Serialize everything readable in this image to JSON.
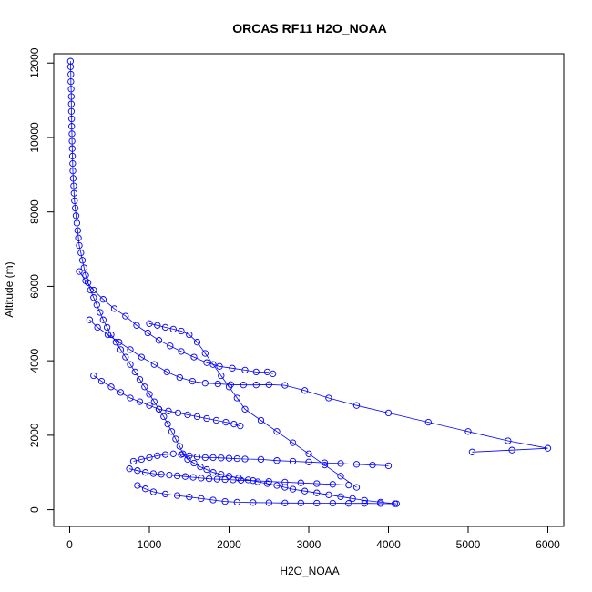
{
  "chart_data": {
    "type": "scatter",
    "title": "ORCAS RF11 H2O_NOAA",
    "xlabel": "H2O_NOAA",
    "ylabel": "Altitude (m)",
    "xlim": [
      -200,
      6200
    ],
    "ylim": [
      -450,
      12250
    ],
    "xticks": [
      0,
      1000,
      2000,
      3000,
      4000,
      5000,
      6000
    ],
    "yticks": [
      0,
      2000,
      4000,
      6000,
      8000,
      10000,
      12000
    ],
    "grid": false,
    "legend": "none",
    "series_color": "#0000ff",
    "marker": "open-circle",
    "connected": true,
    "series": [
      {
        "x": [
          10,
          12,
          15,
          15,
          18,
          20,
          20,
          22,
          25,
          25,
          28,
          30,
          32,
          35,
          38,
          40,
          45,
          50,
          55,
          60,
          70,
          80,
          90,
          100,
          110,
          120,
          140,
          160,
          180,
          200,
          230,
          260,
          300,
          340,
          380,
          420,
          470,
          520,
          580,
          640,
          700,
          760,
          820,
          880,
          940,
          1000,
          1060,
          1120,
          1180,
          1230,
          1280,
          1330,
          1380,
          1420,
          1480,
          1560,
          1640,
          1720,
          1800,
          1900,
          2000,
          2120,
          2240,
          2360,
          2480,
          2600,
          2700,
          2800,
          2950,
          3100,
          3250,
          3400,
          3550,
          3700,
          3900,
          4100,
          4080,
          3900,
          3700,
          3500,
          3300,
          3100,
          2900,
          2700,
          2500,
          2300,
          2100,
          1950,
          1800,
          1650,
          1500,
          1350,
          1200,
          1050,
          950,
          850
        ],
        "y": [
          12050,
          11900,
          11700,
          11500,
          11300,
          11100,
          10900,
          10700,
          10500,
          10300,
          10100,
          9900,
          9700,
          9500,
          9300,
          9100,
          8900,
          8700,
          8500,
          8300,
          8100,
          7900,
          7700,
          7500,
          7300,
          7100,
          6900,
          6700,
          6500,
          6300,
          6100,
          5900,
          5700,
          5500,
          5300,
          5100,
          4900,
          4700,
          4500,
          4300,
          4100,
          3900,
          3700,
          3500,
          3300,
          3100,
          2900,
          2700,
          2500,
          2300,
          2100,
          1900,
          1700,
          1500,
          1350,
          1250,
          1150,
          1080,
          1000,
          950,
          900,
          850,
          800,
          750,
          700,
          650,
          600,
          550,
          500,
          450,
          400,
          350,
          300,
          250,
          200,
          160,
          160,
          165,
          170,
          170,
          175,
          175,
          180,
          180,
          185,
          190,
          200,
          220,
          260,
          300,
          340,
          380,
          420,
          480,
          560,
          650
        ]
      },
      {
        "x": [
          120,
          200,
          300,
          420,
          560,
          700,
          840,
          980,
          1120,
          1260,
          1400,
          1560,
          1720,
          1880,
          2040,
          2200,
          2340,
          2480,
          2550
        ],
        "y": [
          6400,
          6150,
          5900,
          5650,
          5400,
          5200,
          4950,
          4750,
          4550,
          4400,
          4250,
          4100,
          3950,
          3850,
          3800,
          3750,
          3700,
          3700,
          3650
        ]
      },
      {
        "x": [
          250,
          350,
          480,
          620,
          760,
          900,
          1060,
          1220,
          1380,
          1540,
          1700,
          1860,
          2020,
          2180,
          2340,
          2500,
          2700,
          2950,
          3250,
          3600,
          4000,
          4500,
          5000,
          5500,
          6000,
          5550,
          5050
        ],
        "y": [
          5100,
          4900,
          4700,
          4500,
          4300,
          4100,
          3900,
          3700,
          3550,
          3450,
          3400,
          3380,
          3360,
          3350,
          3350,
          3360,
          3340,
          3200,
          3000,
          2800,
          2600,
          2350,
          2100,
          1850,
          1650,
          1600,
          1550
        ]
      },
      {
        "x": [
          300,
          400,
          520,
          640,
          760,
          880,
          1000,
          1120,
          1240,
          1360,
          1480,
          1600,
          1720,
          1840,
          1960,
          2060,
          2140
        ],
        "y": [
          3600,
          3450,
          3300,
          3150,
          3000,
          2900,
          2800,
          2700,
          2650,
          2600,
          2550,
          2500,
          2450,
          2400,
          2350,
          2300,
          2250
        ]
      },
      {
        "x": [
          800,
          900,
          1000,
          1100,
          1200,
          1300,
          1400,
          1500,
          1600,
          1700,
          1800,
          1900,
          2000,
          2100,
          2200,
          2400,
          2600,
          2800,
          3000,
          3200,
          3400,
          3600,
          3800,
          4000
        ],
        "y": [
          1300,
          1350,
          1400,
          1450,
          1480,
          1500,
          1480,
          1450,
          1420,
          1400,
          1400,
          1390,
          1380,
          1370,
          1360,
          1350,
          1320,
          1300,
          1280,
          1260,
          1240,
          1220,
          1200,
          1180
        ]
      },
      {
        "x": [
          750,
          850,
          950,
          1050,
          1150,
          1250,
          1350,
          1450,
          1550,
          1650,
          1750,
          1850,
          1950,
          2050,
          2150,
          2300,
          2500,
          2700,
          2900,
          3100,
          3300,
          3500
        ],
        "y": [
          1100,
          1050,
          1000,
          970,
          950,
          930,
          910,
          890,
          870,
          850,
          830,
          820,
          810,
          800,
          790,
          780,
          760,
          740,
          720,
          700,
          680,
          660
        ]
      },
      {
        "x": [
          1000,
          1100,
          1200,
          1300,
          1400,
          1500,
          1600,
          1700,
          1800,
          1900,
          2000,
          2100,
          2200,
          2400,
          2600,
          2800,
          3000,
          3200,
          3400,
          3600
        ],
        "y": [
          5000,
          4950,
          4900,
          4850,
          4800,
          4700,
          4500,
          4200,
          3900,
          3600,
          3300,
          3000,
          2700,
          2400,
          2100,
          1800,
          1500,
          1200,
          900,
          600
        ]
      }
    ]
  }
}
